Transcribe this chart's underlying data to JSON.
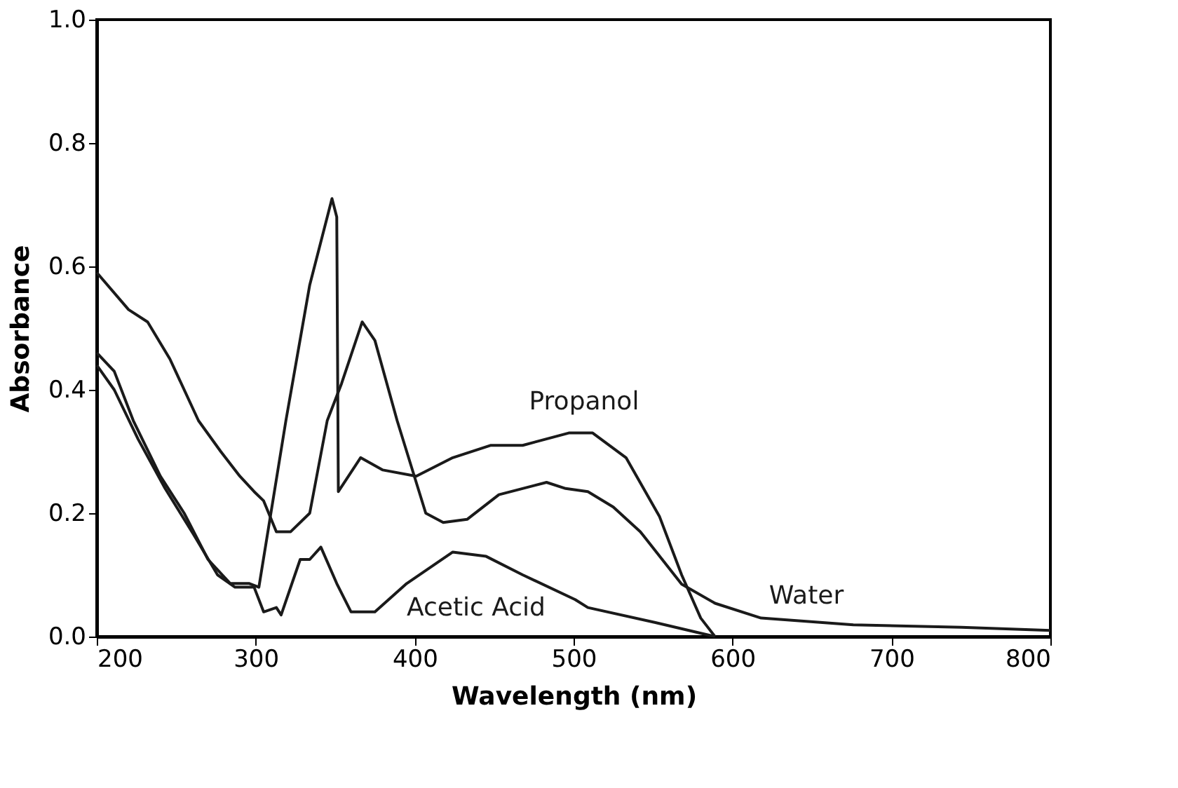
{
  "chart_data": {
    "type": "line",
    "xlabel": "Wavelength (nm)",
    "ylabel": "Absorbance",
    "xlim": [
      200,
      800
    ],
    "ylim": [
      0,
      1
    ],
    "xticks": [
      200,
      300,
      400,
      500,
      600,
      700,
      800
    ],
    "yticks": [
      {
        "value": 0,
        "label": "0.0"
      },
      {
        "value": 0.2,
        "label": "0.2"
      },
      {
        "value": 0.4,
        "label": "0.4"
      },
      {
        "value": 0.6,
        "label": "0.6"
      },
      {
        "value": 0.8,
        "label": "0.8"
      },
      {
        "value": 1,
        "label": "1.0"
      }
    ],
    "grid": false,
    "legend": false,
    "marker": "none",
    "line_style": "solid",
    "series": [
      {
        "name": "Propanol",
        "color": "#1a1a1a",
        "x": [
          200,
          211,
          223,
          240,
          255,
          270,
          284,
          296,
          302,
          319,
          334,
          348,
          351,
          352,
          366,
          380,
          401,
          424,
          448,
          468,
          497,
          512,
          533,
          554,
          568,
          580,
          589
        ],
        "values": [
          0.46,
          0.43,
          0.35,
          0.26,
          0.2,
          0.125,
          0.086,
          0.086,
          0.08,
          0.35,
          0.57,
          0.71,
          0.68,
          0.235,
          0.29,
          0.27,
          0.26,
          0.29,
          0.31,
          0.31,
          0.33,
          0.33,
          0.29,
          0.195,
          0.1,
          0.03,
          0
        ]
      },
      {
        "name": "Water",
        "color": "#1a1a1a",
        "x": [
          200,
          220,
          232,
          246,
          264,
          278,
          290,
          299,
          305,
          313,
          322,
          334,
          345,
          354,
          367,
          375,
          389,
          407,
          418,
          433,
          453,
          483,
          495,
          509,
          525,
          542,
          568,
          589,
          618,
          676,
          744,
          800
        ],
        "values": [
          0.59,
          0.53,
          0.51,
          0.45,
          0.35,
          0.3,
          0.26,
          0.235,
          0.22,
          0.17,
          0.17,
          0.2,
          0.35,
          0.41,
          0.51,
          0.48,
          0.35,
          0.2,
          0.185,
          0.19,
          0.23,
          0.25,
          0.24,
          0.235,
          0.21,
          0.17,
          0.085,
          0.054,
          0.03,
          0.019,
          0.015,
          0.01
        ]
      },
      {
        "name": "Acetic Acid",
        "color": "#1a1a1a",
        "x": [
          200,
          211,
          226,
          243,
          261,
          276,
          287,
          299,
          305,
          313,
          316,
          328,
          334,
          341,
          351,
          360,
          375,
          395,
          424,
          445,
          468,
          501,
          509,
          551,
          589
        ],
        "values": [
          0.44,
          0.4,
          0.32,
          0.24,
          0.165,
          0.1,
          0.08,
          0.08,
          0.04,
          0.047,
          0.035,
          0.125,
          0.125,
          0.145,
          0.086,
          0.04,
          0.04,
          0.086,
          0.137,
          0.13,
          0.1,
          0.06,
          0.047,
          0.023,
          0
        ]
      }
    ]
  }
}
